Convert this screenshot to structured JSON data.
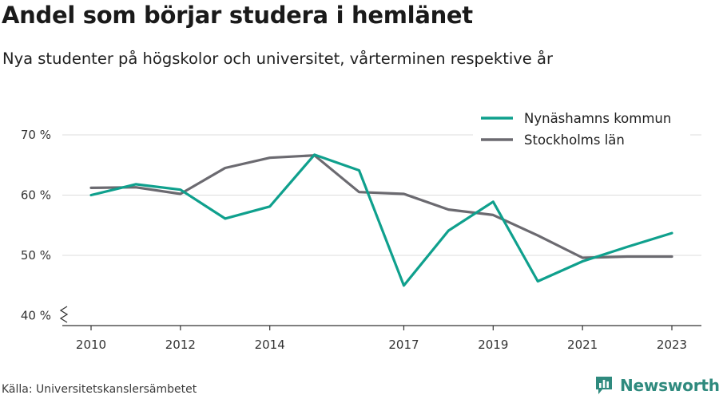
{
  "header": {
    "title": "Andel som börjar studera i hemlänet",
    "subtitle": "Nya studenter på högskolor och universitet, vårterminen respektive år"
  },
  "footer": {
    "source": "Källa: Universitetskanslersämbetet",
    "brand": "Newsworthy",
    "brand_icon": "bar-chart-icon",
    "brand_color": "#2f8a7e"
  },
  "chart_data": {
    "type": "line",
    "title": "Andel som börjar studera i hemlänet",
    "subtitle": "Nya studenter på högskolor och universitet, vårterminen respektive år",
    "xlabel": "",
    "ylabel": "",
    "x": [
      2010,
      2011,
      2012,
      2013,
      2014,
      2015,
      2016,
      2017,
      2018,
      2019,
      2020,
      2021,
      2022,
      2023
    ],
    "x_tick_labels": [
      "2010",
      "2012",
      "2014",
      "2017",
      "2019",
      "2021",
      "2023"
    ],
    "y_ticks": [
      40,
      50,
      60,
      70
    ],
    "y_tick_labels": [
      "40 %",
      "50 %",
      "60 %",
      "70 %"
    ],
    "ylim": [
      40,
      70
    ],
    "y_axis_break": true,
    "grid": "horizontal",
    "legend_position": "top-right",
    "series": [
      {
        "name": "Nynäshamns kommun",
        "color": "#0fa08d",
        "values": [
          60.0,
          61.8,
          60.9,
          56.1,
          58.1,
          66.7,
          64.1,
          45.0,
          54.1,
          58.9,
          45.7,
          49.0,
          51.4,
          53.7
        ]
      },
      {
        "name": "Stockholms län",
        "color": "#6b6a70",
        "values": [
          61.2,
          61.3,
          60.2,
          64.5,
          66.2,
          66.6,
          60.5,
          60.2,
          57.6,
          56.7,
          53.3,
          49.6,
          49.8,
          49.8
        ]
      }
    ]
  }
}
